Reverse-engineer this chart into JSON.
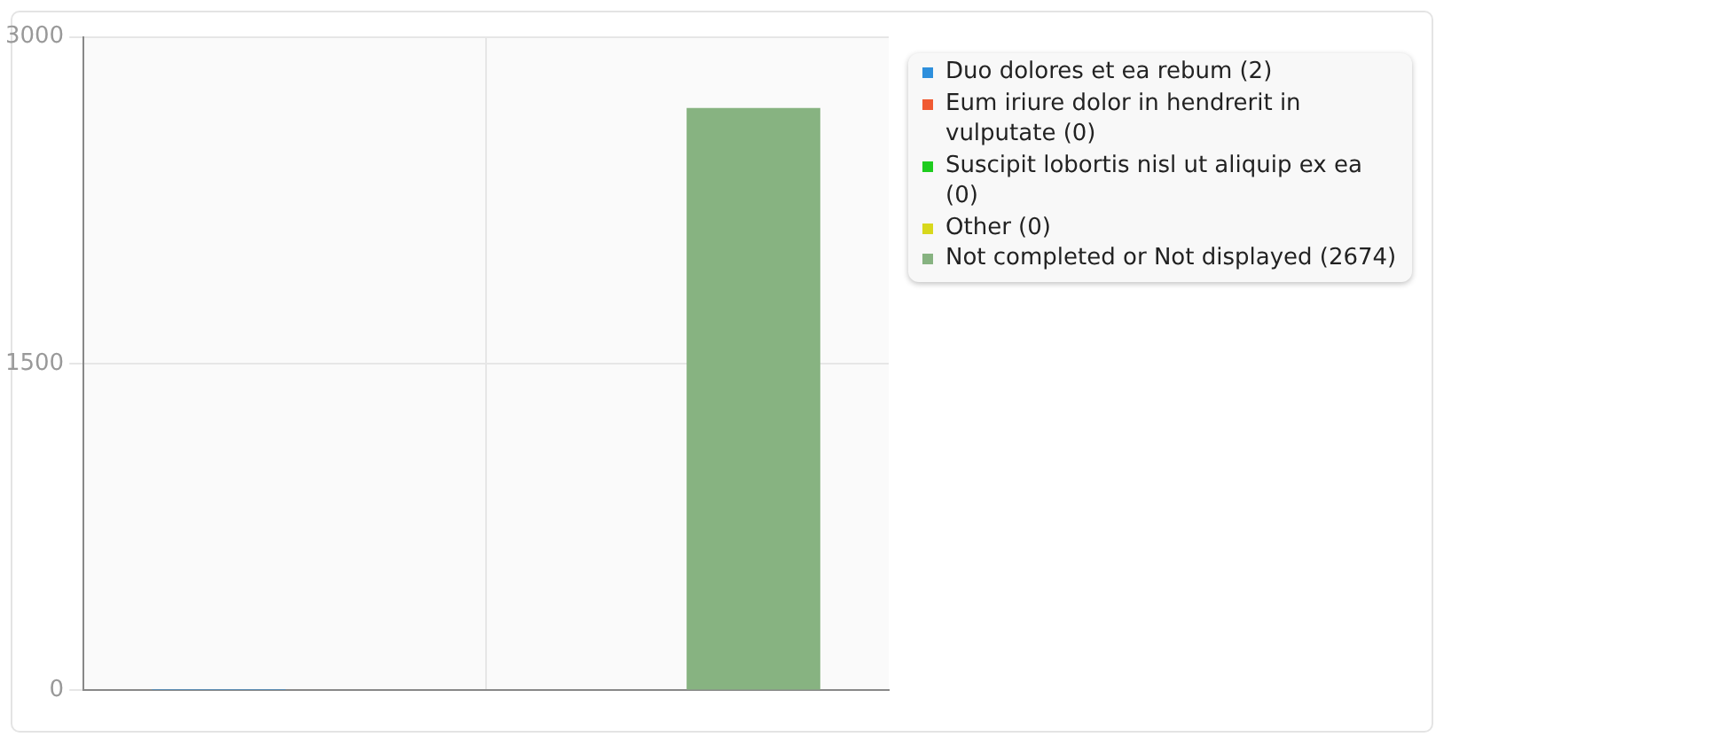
{
  "chart_data": {
    "type": "bar",
    "categories": [
      null
    ],
    "series": [
      {
        "name": "Duo dolores et ea rebum (2)",
        "color": "#2e8fdc",
        "values": [
          2
        ]
      },
      {
        "name": "Eum iriure dolor in hendrerit in vulputate (0)",
        "color": "#f05a32",
        "values": [
          0
        ]
      },
      {
        "name": "Suscipit lobortis nisl ut aliquip ex ea (0)",
        "color": "#1ecc1e",
        "values": [
          0
        ]
      },
      {
        "name": "Other (0)",
        "color": "#d8d81c",
        "values": [
          0
        ]
      },
      {
        "name": "Not completed or Not displayed (2674)",
        "color": "#87b381",
        "values": [
          2674
        ]
      }
    ],
    "ylim": [
      0,
      3000
    ],
    "yticks": [
      0,
      1500,
      3000
    ],
    "grid": true,
    "legend": "right"
  }
}
